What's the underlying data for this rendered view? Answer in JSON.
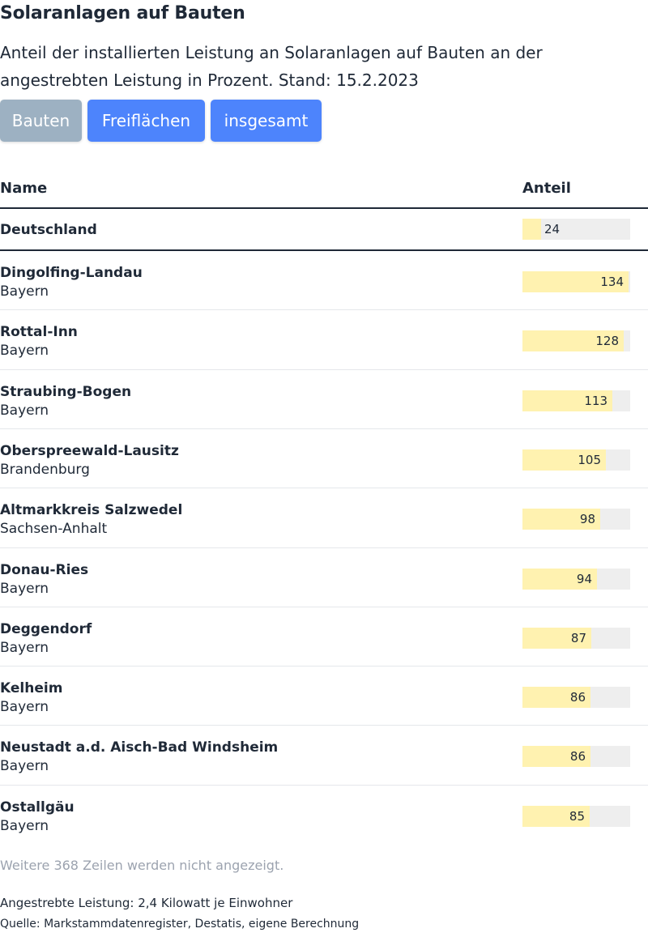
{
  "header": {
    "title": "Solaranlagen auf Bauten",
    "subtitle_line1": "Anteil der installierten Leistung an Solaranlagen auf Bauten an der",
    "subtitle_line2": "angestrebten Leistung in Prozent. Stand: 15.2.2023"
  },
  "filters": {
    "buttons": [
      {
        "label": "Bauten",
        "active": true
      },
      {
        "label": "Freiflächen",
        "active": false
      },
      {
        "label": "insgesamt",
        "active": false
      }
    ]
  },
  "table": {
    "col_name": "Name",
    "col_share": "Anteil"
  },
  "colors": {
    "bar_fill": "#fff2b0",
    "bar_track": "#eeeeee",
    "button_active": "#9db1c2",
    "button_normal": "#4d84fc"
  },
  "chart_data": {
    "type": "table",
    "title": "Solaranlagen auf Bauten",
    "value_max": 134,
    "summary_row": {
      "name": "Deutschland",
      "value": 24
    },
    "rows": [
      {
        "name": "Dingolfing-Landau",
        "state": "Bayern",
        "value": 134
      },
      {
        "name": "Rottal-Inn",
        "state": "Bayern",
        "value": 128
      },
      {
        "name": "Straubing-Bogen",
        "state": "Bayern",
        "value": 113
      },
      {
        "name": "Oberspreewald-Lausitz",
        "state": "Brandenburg",
        "value": 105
      },
      {
        "name": "Altmarkkreis Salzwedel",
        "state": "Sachsen-Anhalt",
        "value": 98
      },
      {
        "name": "Donau-Ries",
        "state": "Bayern",
        "value": 94
      },
      {
        "name": "Deggendorf",
        "state": "Bayern",
        "value": 87
      },
      {
        "name": "Kelheim",
        "state": "Bayern",
        "value": 86
      },
      {
        "name": "Neustadt a.d. Aisch-Bad Windsheim",
        "state": "Bayern",
        "value": 86
      },
      {
        "name": "Ostallgäu",
        "state": "Bayern",
        "value": 85
      }
    ]
  },
  "footer": {
    "more_rows_note": "Weitere 368 Zeilen werden nicht angezeigt.",
    "target_note": "Angestrebte Leistung: 2,4 Kilowatt je Einwohner",
    "source_note": "Quelle: Markstammdatenregister, Destatis, eigene Berechnung"
  }
}
